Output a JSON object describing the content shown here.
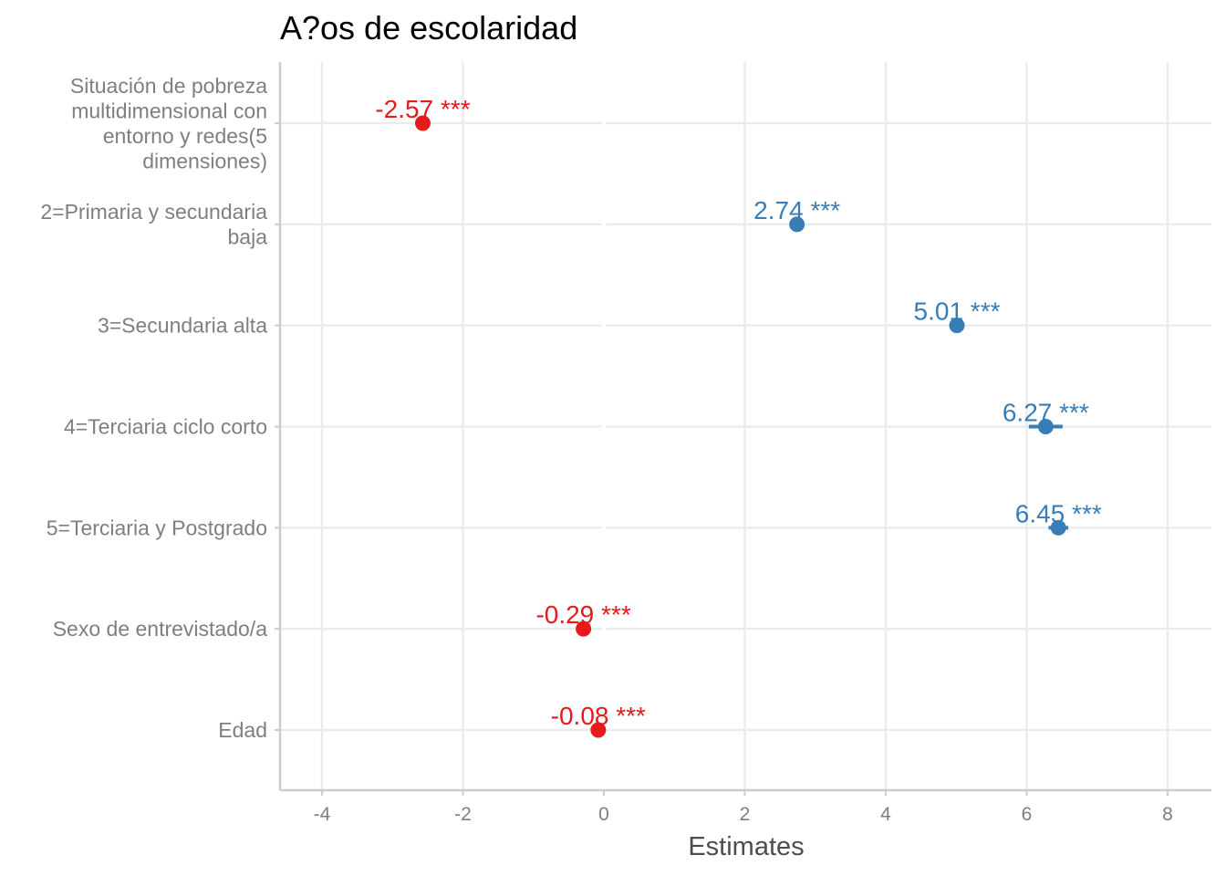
{
  "chart_data": {
    "type": "scatter",
    "title": "A?os de escolaridad",
    "xlabel": "Estimates",
    "ylabel": "",
    "xlim": [
      -4.6,
      8.6
    ],
    "xticks": [
      -4,
      -2,
      0,
      2,
      4,
      6,
      8
    ],
    "xtick_labels": [
      "-4",
      "-2",
      "0",
      "2",
      "4",
      "6",
      "8"
    ],
    "grid": true,
    "legend": "none",
    "colors": {
      "positive": "#377eb8",
      "negative": "#e41a1c"
    },
    "terms": [
      {
        "label": "Situación de pobreza multidimensional con entorno y redes(5 dimensiones)",
        "label_lines": [
          "Situación de pobreza",
          "multidimensional con",
          "entorno y redes(5",
          "dimensiones)"
        ],
        "estimate": -2.57,
        "ci": [
          -2.62,
          -2.52
        ],
        "text": "-2.57 ***"
      },
      {
        "label": "2=Primaria y secundaria baja",
        "label_lines": [
          "2=Primaria y secundaria",
          "baja"
        ],
        "estimate": 2.74,
        "ci": [
          2.69,
          2.79
        ],
        "text": "2.74 ***"
      },
      {
        "label": "3=Secundaria alta",
        "label_lines": [
          "3=Secundaria alta"
        ],
        "estimate": 5.01,
        "ci": [
          4.96,
          5.06
        ],
        "text": "5.01 ***"
      },
      {
        "label": "4=Terciaria ciclo corto",
        "label_lines": [
          "4=Terciaria ciclo corto"
        ],
        "estimate": 6.27,
        "ci": [
          6.03,
          6.51
        ],
        "text": "6.27 ***"
      },
      {
        "label": "5=Terciaria y Postgrado",
        "label_lines": [
          "5=Terciaria y Postgrado"
        ],
        "estimate": 6.45,
        "ci": [
          6.31,
          6.59
        ],
        "text": "6.45 ***"
      },
      {
        "label": "Sexo de entrevistado/a",
        "label_lines": [
          "Sexo de entrevistado/a"
        ],
        "estimate": -0.29,
        "ci": [
          -0.33,
          -0.25
        ],
        "text": "-0.29 ***"
      },
      {
        "label": "Edad",
        "label_lines": [
          "Edad"
        ],
        "estimate": -0.08,
        "ci": [
          -0.09,
          -0.07
        ],
        "text": "-0.08 ***"
      }
    ]
  }
}
